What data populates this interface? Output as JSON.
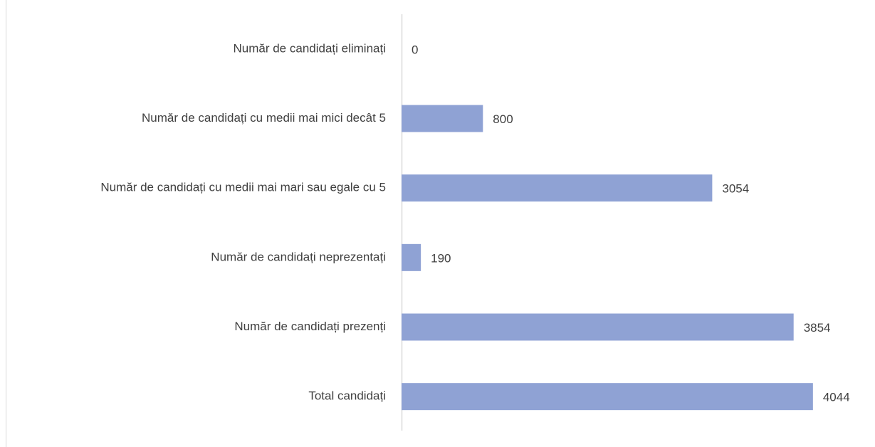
{
  "chart_data": {
    "type": "hbar",
    "categories": [
      "Număr de candidați eliminați",
      "Număr de candidați cu medii mai mici decât 5",
      "Număr de candidați cu medii mai mari sau egale cu 5",
      "Număr de candidați neprezentați",
      "Număr de candidați prezenți",
      "Total candidați"
    ],
    "values": [
      0,
      800,
      3054,
      190,
      3854,
      4044
    ],
    "color": "#8fa2d4",
    "xlim": [
      0,
      4500
    ]
  }
}
